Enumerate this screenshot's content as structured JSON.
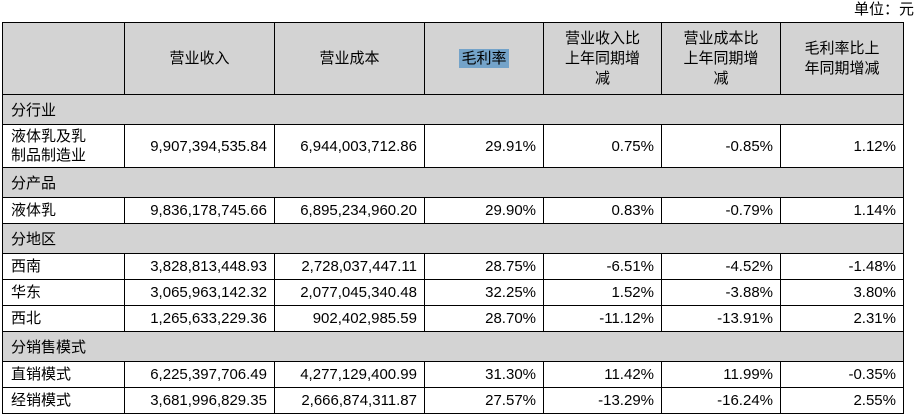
{
  "unit_label": "单位：元",
  "colors": {
    "header_bg": "#d3d3d3",
    "section_bg": "#d3d3d3",
    "selection_highlight": "#74a3c9",
    "border": "#000000"
  },
  "table": {
    "columns": [
      "",
      "营业收入",
      "营业成本",
      "毛利率",
      "营业收入比上年同期增减",
      "营业成本比上年同期增减",
      "毛利率比上年同期增减"
    ],
    "sections": [
      {
        "title": "分行业",
        "rows": [
          {
            "label": "液体乳及乳制品制造业",
            "values": [
              "9,907,394,535.84",
              "6,944,003,712.86",
              "29.91%",
              "0.75%",
              "-0.85%",
              "1.12%"
            ]
          }
        ]
      },
      {
        "title": "分产品",
        "rows": [
          {
            "label": "液体乳",
            "values": [
              "9,836,178,745.66",
              "6,895,234,960.20",
              "29.90%",
              "0.83%",
              "-0.79%",
              "1.14%"
            ]
          }
        ]
      },
      {
        "title": "分地区",
        "rows": [
          {
            "label": "西南",
            "values": [
              "3,828,813,448.93",
              "2,728,037,447.11",
              "28.75%",
              "-6.51%",
              "-4.52%",
              "-1.48%"
            ]
          },
          {
            "label": "华东",
            "values": [
              "3,065,963,142.32",
              "2,077,045,340.48",
              "32.25%",
              "1.52%",
              "-3.88%",
              "3.80%"
            ]
          },
          {
            "label": "西北",
            "values": [
              "1,265,633,229.36",
              "902,402,985.59",
              "28.70%",
              "-11.12%",
              "-13.91%",
              "2.31%"
            ]
          }
        ]
      },
      {
        "title": "分销售模式",
        "rows": [
          {
            "label": "直销模式",
            "values": [
              "6,225,397,706.49",
              "4,277,129,400.99",
              "31.30%",
              "11.42%",
              "11.99%",
              "-0.35%"
            ]
          },
          {
            "label": "经销模式",
            "values": [
              "3,681,996,829.35",
              "2,666,874,311.87",
              "27.57%",
              "-13.29%",
              "-16.24%",
              "2.55%"
            ]
          }
        ]
      }
    ]
  }
}
